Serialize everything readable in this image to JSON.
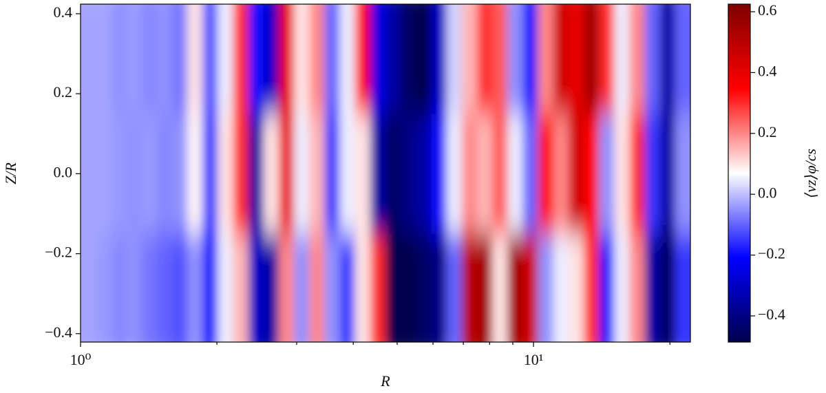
{
  "chart_data": {
    "type": "heatmap",
    "xlabel": "R",
    "ylabel": "Z/R",
    "colorbar_label": "⟨vz⟩φ/cs",
    "colormap": "seismic",
    "xscale": "log",
    "xlim": [
      1,
      22.2
    ],
    "ylim": [
      -0.421,
      0.424
    ],
    "clim": [
      -0.486,
      0.625
    ],
    "xticks": [
      {
        "value": 1,
        "label": "10⁰"
      },
      {
        "value": 10,
        "label": "10¹"
      }
    ],
    "xminorticks": [
      2,
      3,
      4,
      5,
      6,
      7,
      8,
      9,
      20
    ],
    "yticks": [
      {
        "value": -0.4,
        "label": "−0.4"
      },
      {
        "value": -0.2,
        "label": "−0.2"
      },
      {
        "value": 0,
        "label": "0.0"
      },
      0.2,
      0.4
    ],
    "cticks": [
      {
        "value": -0.4,
        "label": "−0.4"
      },
      {
        "value": -0.2,
        "label": "−0.2"
      },
      {
        "value": 0,
        "label": "0.0"
      },
      0.2,
      0.4,
      0.6
    ],
    "xbins": [
      1,
      1.08,
      1.168,
      1.262,
      1.363,
      1.473,
      1.592,
      1.72,
      1.859,
      2.009,
      2.171,
      2.346,
      2.535,
      2.739,
      2.96,
      3.199,
      3.456,
      3.735,
      4.036,
      4.361,
      4.713,
      5.093,
      5.503,
      5.947,
      6.426,
      6.944,
      7.504,
      8.109,
      8.762,
      9.468,
      10.23,
      11.06,
      11.95,
      12.91,
      13.95,
      15.08,
      16.29,
      17.6,
      19.02,
      20.56,
      22.2
    ],
    "ybins": [
      0.424,
      0.15,
      -0.15,
      -0.421
    ],
    "values": [
      [
        -0.03,
        -0.03,
        -0.05,
        -0.04,
        -0.06,
        -0.05,
        -0.08,
        0.1,
        -0.12,
        0.05,
        0.3,
        -0.2,
        -0.3,
        0.4,
        0.1,
        0.2,
        -0.1,
        0.05,
        0.35,
        -0.25,
        -0.35,
        -0.45,
        -0.55,
        -0.3,
        0.02,
        0.15,
        0.3,
        0.25,
        -0.05,
        -0.2,
        0.2,
        0.45,
        0.4,
        0.55,
        0.3,
        0.05,
        0.2,
        -0.1,
        -0.35,
        -0.1
      ],
      [
        -0.03,
        -0.03,
        -0.04,
        -0.05,
        -0.04,
        -0.06,
        -0.05,
        0.08,
        -0.15,
        0.1,
        0.3,
        -0.35,
        0.1,
        0.4,
        0.05,
        0.15,
        -0.15,
        0.05,
        0.1,
        -0.35,
        -0.45,
        -0.4,
        -0.35,
        -0.2,
        0.05,
        0.2,
        0.15,
        0.25,
        0.05,
        -0.1,
        0.35,
        0.2,
        0.45,
        0.35,
        -0.05,
        0.1,
        0.3,
        -0.15,
        -0.35,
        -0.05
      ],
      [
        -0.03,
        -0.04,
        -0.06,
        -0.05,
        -0.08,
        -0.1,
        -0.12,
        -0.05,
        -0.2,
        0.05,
        0.15,
        -0.3,
        -0.35,
        0.2,
        -0.05,
        0.2,
        -0.05,
        -0.15,
        0.1,
        0.3,
        -0.5,
        -0.55,
        -0.45,
        -0.4,
        -0.1,
        0.5,
        0.55,
        0.1,
        0.55,
        0.45,
        -0.05,
        0.05,
        0.1,
        0.3,
        -0.2,
        0.05,
        0.2,
        -0.35,
        -0.45,
        -0.15
      ]
    ]
  }
}
